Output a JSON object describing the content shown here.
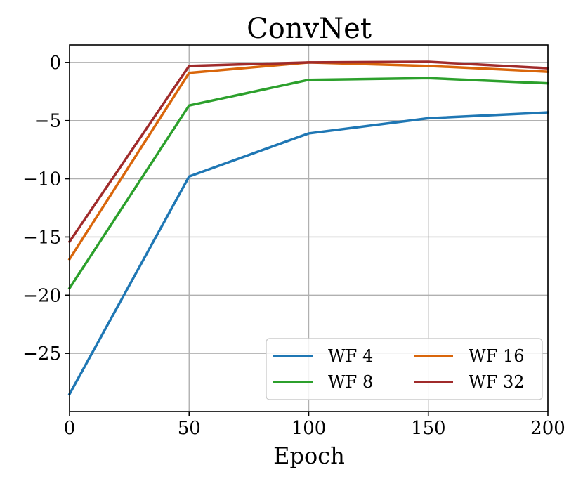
{
  "chart_data": {
    "type": "line",
    "title": "ConvNet",
    "xlabel": "Epoch",
    "ylabel": "",
    "x": [
      0,
      50,
      100,
      150,
      200
    ],
    "xlim": [
      0,
      200
    ],
    "ylim": [
      -30,
      1.5
    ],
    "xticks": [
      0,
      50,
      100,
      150,
      200
    ],
    "yticks": [
      0,
      -5,
      -10,
      -15,
      -20,
      -25
    ],
    "xtick_labels": [
      "0",
      "50",
      "100",
      "150",
      "200"
    ],
    "ytick_labels": [
      "0",
      "−5",
      "−10",
      "−15",
      "−20",
      "−25"
    ],
    "grid": true,
    "legend_position": "lower-right",
    "legend_columns": 2,
    "series": [
      {
        "name": "WF 4",
        "color": "#1f77b4",
        "values": [
          -28.5,
          -9.8,
          -6.1,
          -4.8,
          -4.3
        ]
      },
      {
        "name": "WF 8",
        "color": "#2ca02c",
        "values": [
          -19.4,
          -3.7,
          -1.5,
          -1.35,
          -1.8
        ]
      },
      {
        "name": "WF 16",
        "color": "#d9660b",
        "values": [
          -16.9,
          -0.9,
          0.0,
          -0.3,
          -0.8
        ]
      },
      {
        "name": "WF 32",
        "color": "#a02b2b",
        "values": [
          -15.4,
          -0.3,
          0.0,
          0.05,
          -0.5
        ]
      }
    ]
  }
}
